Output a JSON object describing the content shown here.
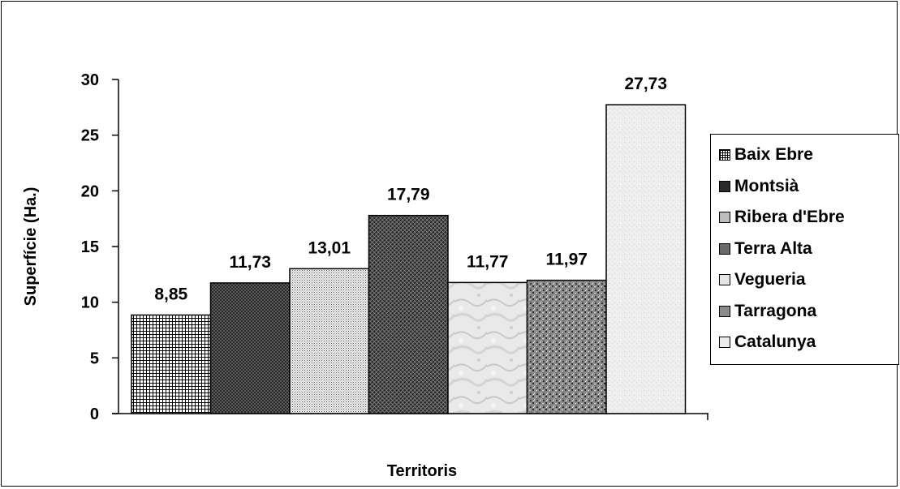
{
  "chart_data": {
    "type": "bar",
    "categories": [
      "Baix Ebre",
      "Montsià",
      "Ribera d'Ebre",
      "Terra Alta",
      "Vegueria",
      "Tarragona",
      "Catalunya"
    ],
    "values": [
      8.85,
      11.73,
      13.01,
      17.79,
      11.77,
      11.97,
      27.73
    ],
    "value_labels": [
      "8,85",
      "11,73",
      "13,01",
      "17,79",
      "11,77",
      "11,97",
      "27,73"
    ],
    "xlabel": "Territoris",
    "ylabel": "Superfície (Ha.)",
    "ylim": [
      0,
      30
    ],
    "yticks": [
      "0",
      "5",
      "10",
      "15",
      "20",
      "25",
      "30"
    ],
    "grid": false,
    "legend_position": "right",
    "legend": [
      "Baix Ebre",
      "Montsià",
      "Ribera d'Ebre",
      "Terra Alta",
      "Vegueria",
      "Tarragona",
      "Catalunya"
    ],
    "fills": [
      "pattern-grid",
      "pattern-dark-crosshatch",
      "pattern-fine-dots",
      "pattern-dark-diagonal",
      "texture-marble",
      "texture-granite",
      "texture-light-speckle"
    ]
  }
}
